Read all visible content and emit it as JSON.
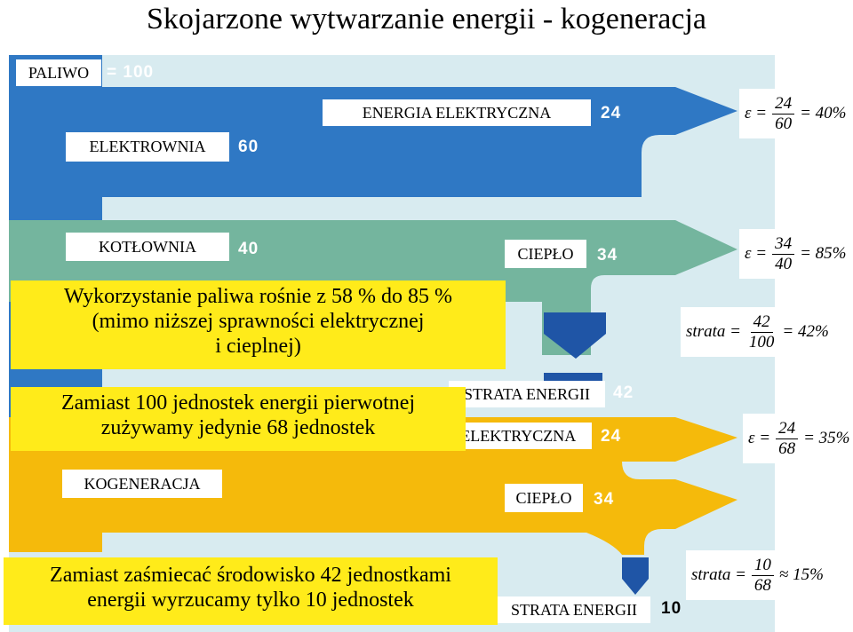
{
  "title": "Skojarzone wytwarzanie energii - kogeneracja",
  "colors": {
    "blue": "#2f78c4",
    "green": "#74b59e",
    "yellow": "#f5ba0b",
    "panel": "#d8ebf0",
    "note": "#ffeb1a"
  },
  "fuel": {
    "label": "PALIWO",
    "value": "100"
  },
  "power_plant": {
    "label": "ELEKTROWNIA",
    "value": "60",
    "electric_label": "ENERGIA ELEKTRYCZNA",
    "electric_value": "24",
    "efficiency": {
      "symbol": "ε =",
      "num": "24",
      "den": "60",
      "result": "= 40%"
    }
  },
  "boiler": {
    "label": "KOTŁOWNIA",
    "value": "40",
    "heat_label": "CIEPŁO",
    "heat_value": "34",
    "efficiency": {
      "symbol": "ε =",
      "num": "34",
      "den": "40",
      "result": "= 85%"
    }
  },
  "loss_separate": {
    "label": "STRATA ENERGII",
    "value": "42",
    "formula": {
      "symbol": "strata =",
      "num": "42",
      "den": "100",
      "result": "= 42%"
    }
  },
  "cogeneration": {
    "label": "KOGENERACJA",
    "electric_label": "ENERGIA ELEKTRYCZNA",
    "electric_value": "24",
    "heat_label": "CIEPŁO",
    "heat_value": "34",
    "efficiency": {
      "symbol": "ε =",
      "num": "24",
      "den": "68",
      "result": "= 35%"
    },
    "loss_label": "STRATA ENERGII",
    "loss_value": "10",
    "loss_formula": {
      "symbol": "strata =",
      "num": "10",
      "den": "68",
      "result": "≈ 15%"
    }
  },
  "notes": {
    "fuel_usage": [
      "Wykorzystanie paliwa rośnie z 58 % do 85 %",
      "(mimo niższej sprawności elektrycznej",
      "i  cieplnej)"
    ],
    "primary_energy": [
      "Zamiast 100 jednostek energii pierwotnej",
      "zużywamy jedynie 68 jednostek"
    ],
    "environment": [
      "Zamiast zaśmiecać środowisko 42 jednostkami",
      "energii wyrzucamy tylko 10 jednostek"
    ]
  }
}
